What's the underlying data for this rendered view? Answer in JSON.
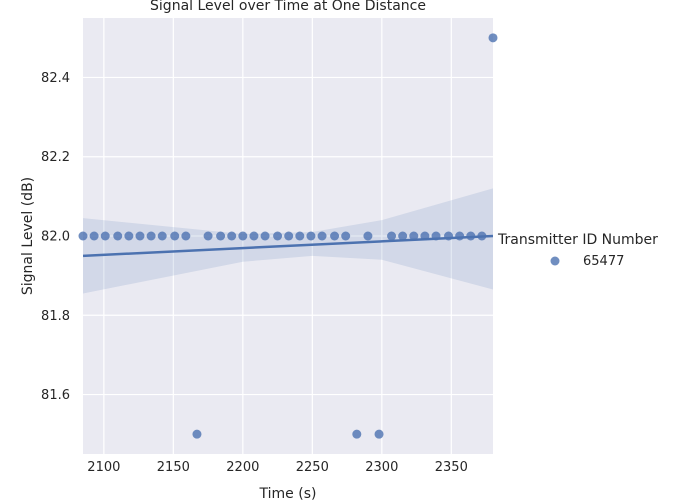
{
  "chart_data": {
    "type": "scatter",
    "title": "Signal Level over Time at One Distance",
    "xlabel": "Time (s)",
    "ylabel": "Signal Level (dB)",
    "xlim": [
      2085,
      2380
    ],
    "ylim": [
      81.45,
      82.55
    ],
    "xticks": [
      2100,
      2150,
      2200,
      2250,
      2300,
      2350
    ],
    "yticks": [
      81.6,
      81.8,
      82.0,
      82.2,
      82.4
    ],
    "xtick_labels": [
      "2100",
      "2150",
      "2200",
      "2250",
      "2300",
      "2350"
    ],
    "ytick_labels": [
      "81.6",
      "81.8",
      "82.0",
      "82.2",
      "82.4"
    ],
    "grid": true,
    "legend_title": "Transmitter ID Number",
    "legend_position": "right",
    "series": [
      {
        "name": "65477",
        "color": "#4c72b0",
        "points": [
          [
            2085,
            82.0
          ],
          [
            2093,
            82.0
          ],
          [
            2101,
            82.0
          ],
          [
            2110,
            82.0
          ],
          [
            2118,
            82.0
          ],
          [
            2126,
            82.0
          ],
          [
            2134,
            82.0
          ],
          [
            2142,
            82.0
          ],
          [
            2151,
            82.0
          ],
          [
            2159,
            82.0
          ],
          [
            2167,
            81.5
          ],
          [
            2175,
            82.0
          ],
          [
            2184,
            82.0
          ],
          [
            2192,
            82.0
          ],
          [
            2200,
            82.0
          ],
          [
            2208,
            82.0
          ],
          [
            2216,
            82.0
          ],
          [
            2225,
            82.0
          ],
          [
            2233,
            82.0
          ],
          [
            2241,
            82.0
          ],
          [
            2249,
            82.0
          ],
          [
            2257,
            82.0
          ],
          [
            2266,
            82.0
          ],
          [
            2274,
            82.0
          ],
          [
            2282,
            81.5
          ],
          [
            2290,
            82.0
          ],
          [
            2298,
            81.5
          ],
          [
            2307,
            82.0
          ],
          [
            2315,
            82.0
          ],
          [
            2323,
            82.0
          ],
          [
            2331,
            82.0
          ],
          [
            2339,
            82.0
          ],
          [
            2348,
            82.0
          ],
          [
            2356,
            82.0
          ],
          [
            2364,
            82.0
          ],
          [
            2372,
            82.0
          ],
          [
            2380,
            82.5
          ]
        ],
        "regression": {
          "line": [
            [
              2085,
              81.95
            ],
            [
              2380,
              82.0
            ]
          ],
          "ci_upper": [
            [
              2085,
              82.045
            ],
            [
              2200,
              82.005
            ],
            [
              2250,
              82.01
            ],
            [
              2300,
              82.04
            ],
            [
              2380,
              82.12
            ]
          ],
          "ci_lower": [
            [
              2085,
              81.855
            ],
            [
              2200,
              81.935
            ],
            [
              2250,
              81.95
            ],
            [
              2300,
              81.94
            ],
            [
              2380,
              81.865
            ]
          ]
        }
      }
    ]
  }
}
